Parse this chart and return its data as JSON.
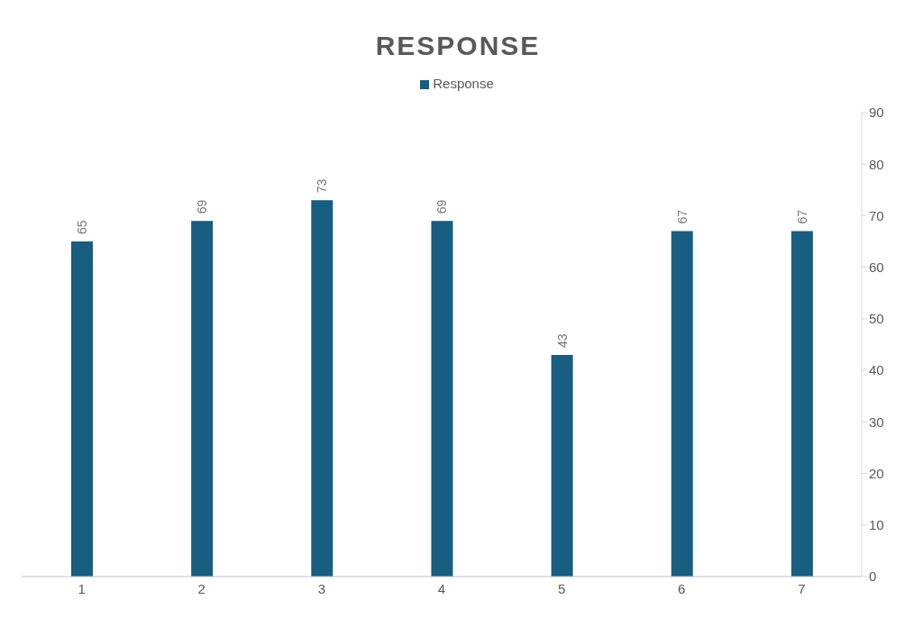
{
  "chart_data": {
    "type": "bar",
    "title": "RESPONSE",
    "categories": [
      "1",
      "2",
      "3",
      "4",
      "5",
      "6",
      "7"
    ],
    "series": [
      {
        "name": "Response",
        "color": "#175e80",
        "values": [
          65,
          69,
          73,
          69,
          43,
          67,
          67
        ]
      }
    ],
    "ylim": [
      0,
      90
    ],
    "yticks": [
      0,
      10,
      20,
      30,
      40,
      50,
      60,
      70,
      80,
      90
    ],
    "data_labels": true,
    "legend": "top",
    "grid": false
  }
}
